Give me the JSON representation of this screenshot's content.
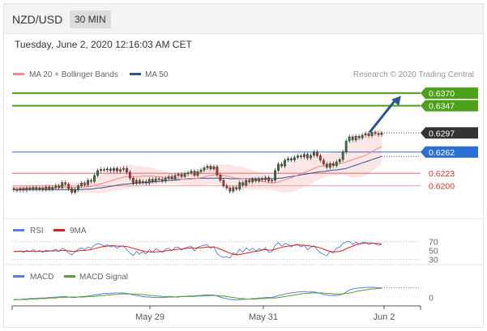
{
  "header": {
    "pair": "NZD/USD",
    "timeframe": "30 MIN"
  },
  "datetime": "Tuesday, June 2, 2020 12:16:03 AM CET",
  "legend": {
    "ma20": "MA 20 + Bollinger Bands",
    "ma50": "MA 50",
    "credit": "Research © 2020 Trading Central",
    "rsi": "RSI",
    "rsi_ma": "9MA",
    "macd": "MACD",
    "macd_signal": "MACD Signal"
  },
  "colors": {
    "green_level": "#4da01a",
    "current_price": "#333333",
    "blue_level": "#2b6fd6",
    "red_level": "#e0302a",
    "ma20": "#f08a8a",
    "ma50": "#2b5594",
    "bollinger_fill": "#fde3e3",
    "arrow": "#2b5594",
    "candle_up": "#2a7a3a",
    "candle_down": "#c62b2b",
    "rsi_line": "#5b7fd8",
    "rsi_ma_line": "#d8201e",
    "macd_line": "#5b7fd8",
    "macd_signal_line": "#5aa02c"
  },
  "chart_data": [
    {
      "type": "candlestick",
      "panel": "price",
      "ylim": [
        0.6143,
        0.6388
      ],
      "x_ticks": [
        "May 29",
        "May 31",
        "Jun 2"
      ],
      "levels": [
        {
          "value": 0.637,
          "label": "0.6370",
          "kind": "resistance"
        },
        {
          "value": 0.6347,
          "label": "0.6347",
          "kind": "resistance"
        },
        {
          "value": 0.6297,
          "label": "0.6297",
          "kind": "current"
        },
        {
          "value": 0.6262,
          "label": "0.6262",
          "kind": "pivot"
        },
        {
          "value": 0.6223,
          "label": "0.6223",
          "kind": "support"
        },
        {
          "value": 0.62,
          "label": "0.6200",
          "kind": "support"
        }
      ],
      "close": [
        0.6193,
        0.6192,
        0.6195,
        0.6192,
        0.6196,
        0.6194,
        0.6197,
        0.6194,
        0.6196,
        0.6193,
        0.6198,
        0.6194,
        0.6197,
        0.62,
        0.6197,
        0.6206,
        0.6203,
        0.6195,
        0.6188,
        0.6193,
        0.62,
        0.6205,
        0.6202,
        0.621,
        0.6208,
        0.6219,
        0.6228,
        0.623,
        0.6229,
        0.6231,
        0.6228,
        0.6232,
        0.6227,
        0.623,
        0.6232,
        0.6225,
        0.6214,
        0.6205,
        0.621,
        0.6206,
        0.6208,
        0.6205,
        0.6212,
        0.6208,
        0.6213,
        0.6212,
        0.6209,
        0.6214,
        0.6217,
        0.6213,
        0.6219,
        0.6221,
        0.6217,
        0.6222,
        0.6224,
        0.6227,
        0.6219,
        0.6226,
        0.6229,
        0.6233,
        0.6236,
        0.6231,
        0.6235,
        0.622,
        0.621,
        0.62,
        0.6196,
        0.619,
        0.6197,
        0.6194,
        0.6206,
        0.6201,
        0.621,
        0.6207,
        0.6212,
        0.6209,
        0.6213,
        0.6211,
        0.6215,
        0.6209,
        0.621,
        0.6228,
        0.624,
        0.6236,
        0.6247,
        0.625,
        0.6247,
        0.6252,
        0.6255,
        0.6253,
        0.6258,
        0.6251,
        0.6256,
        0.6262,
        0.6255,
        0.6247,
        0.624,
        0.6234,
        0.6241,
        0.6237,
        0.6244,
        0.6248,
        0.6262,
        0.6282,
        0.629,
        0.6284,
        0.6291,
        0.6288,
        0.6293,
        0.6296,
        0.6292,
        0.6298,
        0.6296,
        0.6294,
        0.6297
      ],
      "ma20": [
        0.6196,
        0.6196,
        0.6196,
        0.6196,
        0.6196,
        0.6196,
        0.6196,
        0.6196,
        0.6196,
        0.6196,
        0.6196,
        0.6196,
        0.6196,
        0.6196,
        0.6197,
        0.6197,
        0.6197,
        0.6197,
        0.6197,
        0.6197,
        0.6197,
        0.6198,
        0.6198,
        0.6199,
        0.6199,
        0.6201,
        0.6202,
        0.6204,
        0.6205,
        0.6207,
        0.6209,
        0.6211,
        0.6213,
        0.6214,
        0.6216,
        0.6217,
        0.6217,
        0.6217,
        0.6217,
        0.6217,
        0.6218,
        0.6218,
        0.6218,
        0.6218,
        0.6217,
        0.6217,
        0.6216,
        0.6215,
        0.6214,
        0.6213,
        0.6213,
        0.6213,
        0.6212,
        0.6212,
        0.6212,
        0.6212,
        0.6213,
        0.6214,
        0.6215,
        0.6216,
        0.6218,
        0.6219,
        0.622,
        0.622,
        0.622,
        0.6219,
        0.6218,
        0.6217,
        0.6215,
        0.6214,
        0.6214,
        0.6213,
        0.6213,
        0.6212,
        0.6211,
        0.621,
        0.6209,
        0.6208,
        0.6207,
        0.6206,
        0.6205,
        0.6206,
        0.6207,
        0.6209,
        0.6211,
        0.6213,
        0.6215,
        0.6217,
        0.622,
        0.6222,
        0.6225,
        0.6227,
        0.6229,
        0.6232,
        0.6234,
        0.6236,
        0.6237,
        0.6238,
        0.624,
        0.624,
        0.624,
        0.6241,
        0.6242,
        0.6244,
        0.6246,
        0.6248,
        0.625,
        0.6252,
        0.6254,
        0.6256,
        0.6259,
        0.6263,
        0.6266,
        0.6269,
        0.6272
      ],
      "bb_width": [
        0.0006,
        0.0006,
        0.0006,
        0.0006,
        0.0006,
        0.0006,
        0.0006,
        0.0006,
        0.0006,
        0.0006,
        0.0006,
        0.0006,
        0.0006,
        0.0006,
        0.0007,
        0.0007,
        0.0007,
        0.0008,
        0.0009,
        0.0009,
        0.001,
        0.001,
        0.0011,
        0.0012,
        0.0013,
        0.0014,
        0.0016,
        0.0017,
        0.0018,
        0.0019,
        0.002,
        0.0021,
        0.0022,
        0.0022,
        0.0022,
        0.0022,
        0.0022,
        0.0021,
        0.002,
        0.0019,
        0.0018,
        0.0017,
        0.0016,
        0.0015,
        0.0014,
        0.0013,
        0.0012,
        0.0011,
        0.001,
        0.001,
        0.001,
        0.001,
        0.001,
        0.0011,
        0.0011,
        0.0012,
        0.0012,
        0.0013,
        0.0014,
        0.0015,
        0.0016,
        0.0017,
        0.0018,
        0.0018,
        0.0019,
        0.002,
        0.0021,
        0.0022,
        0.0022,
        0.0022,
        0.0022,
        0.0021,
        0.002,
        0.0019,
        0.0018,
        0.0017,
        0.0016,
        0.0015,
        0.0014,
        0.0013,
        0.0013,
        0.0015,
        0.0018,
        0.0021,
        0.0023,
        0.0025,
        0.0026,
        0.0027,
        0.0027,
        0.0027,
        0.0027,
        0.0027,
        0.0026,
        0.0025,
        0.0024,
        0.0023,
        0.0022,
        0.0021,
        0.0021,
        0.0021,
        0.0021,
        0.0021,
        0.0022,
        0.0026,
        0.003,
        0.0033,
        0.0035,
        0.0036,
        0.0037,
        0.0037,
        0.0037,
        0.0036,
        0.0035,
        0.0034,
        0.0033
      ],
      "ma50": [
        0.6193,
        0.6193,
        0.6193,
        0.6193,
        0.6193,
        0.6193,
        0.6193,
        0.6193,
        0.6193,
        0.6193,
        0.6193,
        0.6193,
        0.6193,
        0.6193,
        0.6193,
        0.6193,
        0.6193,
        0.6193,
        0.6193,
        0.6193,
        0.6193,
        0.6193,
        0.6194,
        0.6194,
        0.6194,
        0.6195,
        0.6196,
        0.6196,
        0.6197,
        0.6198,
        0.6199,
        0.62,
        0.6201,
        0.6202,
        0.6203,
        0.6203,
        0.6204,
        0.6204,
        0.6205,
        0.6205,
        0.6206,
        0.6206,
        0.6207,
        0.6207,
        0.6208,
        0.6208,
        0.6209,
        0.6209,
        0.621,
        0.621,
        0.6211,
        0.6211,
        0.6212,
        0.6212,
        0.6213,
        0.6213,
        0.6213,
        0.6214,
        0.6214,
        0.6214,
        0.6214,
        0.6214,
        0.6214,
        0.6214,
        0.6214,
        0.6214,
        0.6214,
        0.6213,
        0.6213,
        0.6213,
        0.6213,
        0.6213,
        0.6213,
        0.6213,
        0.6213,
        0.6213,
        0.6213,
        0.6213,
        0.6213,
        0.6213,
        0.6213,
        0.6213,
        0.6214,
        0.6214,
        0.6215,
        0.6216,
        0.6217,
        0.6218,
        0.6219,
        0.622,
        0.6221,
        0.6222,
        0.6223,
        0.6224,
        0.6225,
        0.6226,
        0.6226,
        0.6227,
        0.6228,
        0.6229,
        0.6229,
        0.623,
        0.6231,
        0.6232,
        0.6234,
        0.6236,
        0.6238,
        0.624,
        0.6242,
        0.6244,
        0.6246,
        0.6248,
        0.625,
        0.6252,
        0.6254
      ],
      "arrow": {
        "from": {
          "index": 110,
          "value": 0.6297
        },
        "to": {
          "index": 120,
          "value": 0.6365
        }
      }
    },
    {
      "type": "line",
      "panel": "rsi",
      "ylim": [
        25,
        75
      ],
      "ticks": [
        {
          "value": 70,
          "label": "70"
        },
        {
          "value": 50,
          "label": "50"
        },
        {
          "value": 30,
          "label": "30"
        }
      ],
      "series": [
        {
          "name": "RSI",
          "values": [
            48,
            47,
            49,
            46,
            50,
            48,
            52,
            47,
            50,
            46,
            51,
            48,
            50,
            53,
            48,
            55,
            52,
            44,
            40,
            47,
            53,
            56,
            52,
            58,
            55,
            62,
            66,
            64,
            60,
            63,
            58,
            61,
            55,
            59,
            60,
            52,
            44,
            38,
            48,
            42,
            47,
            42,
            52,
            46,
            54,
            50,
            45,
            53,
            55,
            49,
            57,
            58,
            51,
            56,
            58,
            60,
            49,
            57,
            60,
            62,
            63,
            55,
            59,
            43,
            37,
            34,
            36,
            33,
            45,
            41,
            53,
            46,
            56,
            50,
            55,
            49,
            54,
            51,
            56,
            46,
            47,
            62,
            68,
            60,
            66,
            64,
            58,
            63,
            64,
            58,
            62,
            52,
            57,
            61,
            52,
            45,
            41,
            38,
            48,
            44,
            55,
            58,
            66,
            70,
            71,
            64,
            69,
            65,
            68,
            69,
            63,
            67,
            65,
            62,
            64
          ]
        },
        {
          "name": "9MA",
          "values": [
            48,
            48,
            48,
            48,
            48,
            48,
            48,
            48,
            48,
            48,
            48,
            49,
            49,
            49,
            49,
            50,
            50,
            49,
            48,
            48,
            49,
            50,
            50,
            51,
            52,
            54,
            56,
            58,
            59,
            60,
            61,
            61,
            60,
            60,
            60,
            59,
            57,
            55,
            53,
            51,
            49,
            47,
            47,
            46,
            47,
            47,
            48,
            49,
            50,
            51,
            52,
            53,
            53,
            54,
            55,
            56,
            55,
            56,
            56,
            57,
            58,
            58,
            58,
            56,
            53,
            50,
            47,
            44,
            41,
            40,
            41,
            42,
            44,
            45,
            47,
            48,
            49,
            51,
            52,
            51,
            51,
            53,
            55,
            57,
            59,
            60,
            61,
            62,
            63,
            62,
            62,
            61,
            60,
            59,
            58,
            56,
            53,
            50,
            48,
            47,
            47,
            48,
            50,
            54,
            57,
            60,
            63,
            65,
            66,
            67,
            67,
            67,
            66,
            66,
            65
          ]
        }
      ]
    },
    {
      "type": "line",
      "panel": "macd",
      "ylim": [
        -0.0015,
        0.0025
      ],
      "ticks": [
        {
          "value": 0,
          "label": "0"
        }
      ],
      "series": [
        {
          "name": "MACD",
          "values": [
            -0.0005,
            -0.0004,
            -0.0004,
            -0.0003,
            -0.0003,
            -0.0002,
            -0.0002,
            -0.0002,
            -0.0001,
            -0.0001,
            -0.0001,
            0,
            0,
            0.0001,
            0.0001,
            0.0002,
            0.0002,
            0.0001,
            0,
            0,
            0.0001,
            0.0002,
            0.0002,
            0.0003,
            0.0004,
            0.0005,
            0.0006,
            0.0007,
            0.0008,
            0.0008,
            0.0008,
            0.0009,
            0.0009,
            0.0009,
            0.0009,
            0.0008,
            0.0007,
            0.0005,
            0.0004,
            0.0003,
            0.0002,
            0.0001,
            0.0001,
            0,
            0,
            0,
            0,
            0,
            0.0001,
            0.0001,
            0.0001,
            0.0002,
            0.0002,
            0.0002,
            0.0003,
            0.0003,
            0.0003,
            0.0004,
            0.0004,
            0.0005,
            0.0005,
            0.0005,
            0.0005,
            0.0003,
            0.0001,
            -0.0001,
            -0.0002,
            -0.0004,
            -0.0004,
            -0.0005,
            -0.0004,
            -0.0004,
            -0.0003,
            -0.0003,
            -0.0002,
            -0.0002,
            -0.0001,
            -0.0001,
            0,
            0,
            0,
            0.0002,
            0.0004,
            0.0005,
            0.0007,
            0.0008,
            0.0009,
            0.001,
            0.0011,
            0.0011,
            0.0012,
            0.0011,
            0.0011,
            0.0011,
            0.001,
            0.0008,
            0.0006,
            0.0005,
            0.0004,
            0.0004,
            0.0004,
            0.0005,
            0.0007,
            0.0011,
            0.0015,
            0.0017,
            0.0018,
            0.0019,
            0.0019,
            0.002,
            0.002,
            0.002,
            0.002,
            0.0019,
            0.0019
          ]
        },
        {
          "name": "MACD Signal",
          "values": [
            -0.0004,
            -0.0004,
            -0.0004,
            -0.0004,
            -0.0004,
            -0.0003,
            -0.0003,
            -0.0003,
            -0.0002,
            -0.0002,
            -0.0002,
            -0.0001,
            -0.0001,
            -0.0001,
            0,
            0,
            0,
            0.0001,
            0.0001,
            0.0001,
            0.0001,
            0.0001,
            0.0001,
            0.0002,
            0.0002,
            0.0002,
            0.0003,
            0.0004,
            0.0004,
            0.0005,
            0.0005,
            0.0006,
            0.0006,
            0.0007,
            0.0007,
            0.0007,
            0.0007,
            0.0007,
            0.0007,
            0.0006,
            0.0006,
            0.0005,
            0.0004,
            0.0004,
            0.0003,
            0.0003,
            0.0002,
            0.0002,
            0.0002,
            0.0002,
            0.0001,
            0.0001,
            0.0002,
            0.0002,
            0.0002,
            0.0002,
            0.0002,
            0.0003,
            0.0003,
            0.0003,
            0.0003,
            0.0004,
            0.0004,
            0.0004,
            0.0003,
            0.0003,
            0.0002,
            0.0001,
            0,
            -0.0001,
            -0.0002,
            -0.0002,
            -0.0003,
            -0.0003,
            -0.0003,
            -0.0003,
            -0.0002,
            -0.0002,
            -0.0002,
            -0.0001,
            -0.0001,
            -0.0001,
            0,
            0.0001,
            0.0002,
            0.0003,
            0.0004,
            0.0005,
            0.0006,
            0.0007,
            0.0008,
            0.0008,
            0.0009,
            0.0009,
            0.0009,
            0.0009,
            0.0009,
            0.0008,
            0.0008,
            0.0007,
            0.0007,
            0.0007,
            0.0007,
            0.0008,
            0.0009,
            0.001,
            0.0012,
            0.0013,
            0.0014,
            0.0015,
            0.0016,
            0.0017,
            0.0017,
            0.0018,
            0.0018
          ]
        }
      ]
    }
  ]
}
